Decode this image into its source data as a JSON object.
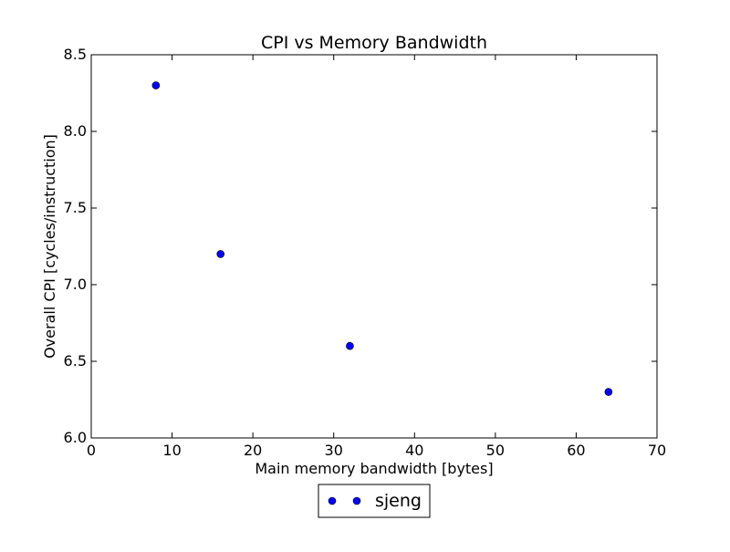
{
  "chart_data": {
    "type": "scatter",
    "title": "CPI vs Memory Bandwidth",
    "xlabel": "Main memory bandwidth [bytes]",
    "ylabel": "Overall CPI [cycles/instruction]",
    "xlim": [
      0,
      70
    ],
    "ylim": [
      6.0,
      8.5
    ],
    "xticks": [
      0,
      10,
      20,
      30,
      40,
      50,
      60,
      70
    ],
    "xtick_labels": [
      "0",
      "10",
      "20",
      "30",
      "40",
      "50",
      "60",
      "70"
    ],
    "yticks": [
      6.0,
      6.5,
      7.0,
      7.5,
      8.0,
      8.5
    ],
    "ytick_labels": [
      "6.0",
      "6.5",
      "7.0",
      "7.5",
      "8.0",
      "8.5"
    ],
    "grid": false,
    "legend_position": "bottom-center-outside",
    "series": [
      {
        "name": "sjeng",
        "color": "#0000ff",
        "marker": "circle",
        "x": [
          8,
          16,
          32,
          64
        ],
        "y": [
          8.3,
          7.2,
          6.6,
          6.3
        ]
      }
    ]
  }
}
